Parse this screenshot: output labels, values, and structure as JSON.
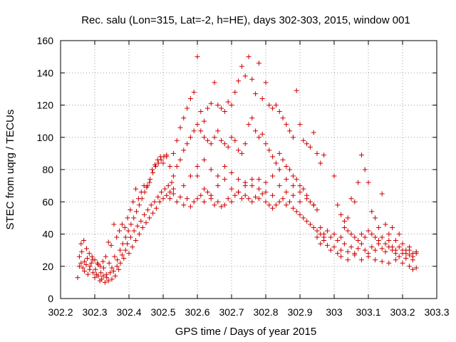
{
  "chart_data": {
    "type": "scatter",
    "title": "Rec. salu (Lon=315, Lat=-2, h=HE), days 302-303, 2015, window 001",
    "xlabel": "GPS time / Days of year 2015",
    "ylabel": "STEC from uqrg / TECUs",
    "xlim": [
      302.2,
      303.3
    ],
    "ylim": [
      0,
      160
    ],
    "xticks": [
      302.2,
      302.3,
      302.4,
      302.5,
      302.6,
      302.7,
      302.8,
      302.9,
      303.0,
      303.1,
      303.2,
      303.3
    ],
    "xtick_labels": [
      "302.2",
      "302.3",
      "302.4",
      "302.5",
      "302.6",
      "302.7",
      "302.8",
      "302.9",
      "303",
      "303.1",
      "303.2",
      "303.3"
    ],
    "yticks": [
      0,
      20,
      40,
      60,
      80,
      100,
      120,
      140,
      160
    ],
    "ytick_labels": [
      "0",
      "20",
      "40",
      "60",
      "80",
      "100",
      "120",
      "140",
      "160"
    ],
    "grid": true,
    "marker": "+",
    "color": "#cc0000",
    "points": [
      [
        302.25,
        13
      ],
      [
        302.255,
        20
      ],
      [
        302.26,
        22
      ],
      [
        302.265,
        19
      ],
      [
        302.27,
        17
      ],
      [
        302.275,
        21
      ],
      [
        302.28,
        15
      ],
      [
        302.285,
        18
      ],
      [
        302.29,
        22
      ],
      [
        302.295,
        16
      ],
      [
        302.3,
        13
      ],
      [
        302.305,
        15
      ],
      [
        302.31,
        14
      ],
      [
        302.315,
        11
      ],
      [
        302.32,
        12
      ],
      [
        302.325,
        14
      ],
      [
        302.33,
        10
      ],
      [
        302.335,
        13
      ],
      [
        302.34,
        11
      ],
      [
        302.345,
        16
      ],
      [
        302.35,
        12
      ],
      [
        302.355,
        17
      ],
      [
        302.36,
        14
      ],
      [
        302.365,
        20
      ],
      [
        302.37,
        18
      ],
      [
        302.375,
        22
      ],
      [
        302.38,
        27
      ],
      [
        302.385,
        25
      ],
      [
        302.39,
        30
      ],
      [
        302.395,
        34
      ],
      [
        302.4,
        28
      ],
      [
        302.405,
        38
      ],
      [
        302.41,
        32
      ],
      [
        302.415,
        42
      ],
      [
        302.42,
        36
      ],
      [
        302.425,
        45
      ],
      [
        302.43,
        40
      ],
      [
        302.435,
        48
      ],
      [
        302.44,
        44
      ],
      [
        302.445,
        52
      ],
      [
        302.45,
        47
      ],
      [
        302.455,
        55
      ],
      [
        302.46,
        50
      ],
      [
        302.465,
        58
      ],
      [
        302.47,
        53
      ],
      [
        302.475,
        60
      ],
      [
        302.48,
        56
      ],
      [
        302.485,
        63
      ],
      [
        302.49,
        60
      ],
      [
        302.495,
        66
      ],
      [
        302.5,
        62
      ],
      [
        302.505,
        68
      ],
      [
        302.51,
        64
      ],
      [
        302.515,
        70
      ],
      [
        302.52,
        66
      ],
      [
        302.525,
        72
      ],
      [
        302.53,
        68
      ],
      [
        302.255,
        26
      ],
      [
        302.262,
        29
      ],
      [
        302.27,
        23
      ],
      [
        302.278,
        25
      ],
      [
        302.286,
        20
      ],
      [
        302.294,
        24
      ],
      [
        302.302,
        18
      ],
      [
        302.31,
        21
      ],
      [
        302.318,
        16
      ],
      [
        302.326,
        19
      ],
      [
        302.334,
        15
      ],
      [
        302.342,
        22
      ],
      [
        302.35,
        19
      ],
      [
        302.358,
        26
      ],
      [
        302.366,
        24
      ],
      [
        302.374,
        30
      ],
      [
        302.382,
        34
      ],
      [
        302.39,
        38
      ],
      [
        302.398,
        42
      ],
      [
        302.406,
        46
      ],
      [
        302.414,
        50
      ],
      [
        302.422,
        54
      ],
      [
        302.43,
        58
      ],
      [
        302.438,
        62
      ],
      [
        302.446,
        66
      ],
      [
        302.454,
        70
      ],
      [
        302.462,
        74
      ],
      [
        302.47,
        78
      ],
      [
        302.478,
        82
      ],
      [
        302.486,
        84
      ],
      [
        302.494,
        86
      ],
      [
        302.502,
        88
      ],
      [
        302.51,
        89
      ],
      [
        302.26,
        34
      ],
      [
        302.268,
        36
      ],
      [
        302.276,
        31
      ],
      [
        302.284,
        28
      ],
      [
        302.292,
        26
      ],
      [
        302.3,
        24
      ],
      [
        302.308,
        22
      ],
      [
        302.316,
        20
      ],
      [
        302.324,
        23
      ],
      [
        302.332,
        26
      ],
      [
        302.34,
        35
      ],
      [
        302.348,
        33
      ],
      [
        302.356,
        46
      ],
      [
        302.364,
        38
      ],
      [
        302.372,
        42
      ],
      [
        302.38,
        46
      ],
      [
        302.388,
        44
      ],
      [
        302.396,
        50
      ],
      [
        302.404,
        55
      ],
      [
        302.412,
        60
      ],
      [
        302.42,
        68
      ],
      [
        302.428,
        62
      ],
      [
        302.436,
        66
      ],
      [
        302.444,
        70
      ],
      [
        302.452,
        69
      ],
      [
        302.46,
        72
      ],
      [
        302.468,
        80
      ],
      [
        302.476,
        83
      ],
      [
        302.484,
        86
      ],
      [
        302.492,
        88
      ],
      [
        302.5,
        84
      ],
      [
        302.51,
        88
      ],
      [
        302.52,
        82
      ],
      [
        302.53,
        90
      ],
      [
        302.54,
        98
      ],
      [
        302.55,
        106
      ],
      [
        302.56,
        112
      ],
      [
        302.57,
        118
      ],
      [
        302.58,
        124
      ],
      [
        302.59,
        128
      ],
      [
        302.6,
        150
      ],
      [
        302.61,
        116
      ],
      [
        302.62,
        110
      ],
      [
        302.63,
        118
      ],
      [
        302.64,
        121
      ],
      [
        302.65,
        134
      ],
      [
        302.66,
        120
      ],
      [
        302.67,
        118
      ],
      [
        302.68,
        116
      ],
      [
        302.69,
        122
      ],
      [
        302.7,
        120
      ],
      [
        302.71,
        128
      ],
      [
        302.72,
        135
      ],
      [
        302.73,
        144
      ],
      [
        302.74,
        138
      ],
      [
        302.75,
        150
      ],
      [
        302.76,
        136
      ],
      [
        302.77,
        127
      ],
      [
        302.78,
        146
      ],
      [
        302.79,
        124
      ],
      [
        302.8,
        134
      ],
      [
        302.81,
        120
      ],
      [
        302.82,
        118
      ],
      [
        302.83,
        120
      ],
      [
        302.84,
        116
      ],
      [
        302.85,
        112
      ],
      [
        302.86,
        108
      ],
      [
        302.87,
        104
      ],
      [
        302.88,
        100
      ],
      [
        302.89,
        129
      ],
      [
        302.9,
        108
      ],
      [
        302.91,
        98
      ],
      [
        302.92,
        96
      ],
      [
        302.93,
        94
      ],
      [
        302.94,
        103
      ],
      [
        302.95,
        90
      ],
      [
        302.96,
        84
      ],
      [
        302.97,
        89
      ],
      [
        302.53,
        76
      ],
      [
        302.54,
        82
      ],
      [
        302.55,
        86
      ],
      [
        302.56,
        92
      ],
      [
        302.57,
        96
      ],
      [
        302.58,
        100
      ],
      [
        302.59,
        104
      ],
      [
        302.6,
        108
      ],
      [
        302.61,
        104
      ],
      [
        302.62,
        100
      ],
      [
        302.63,
        98
      ],
      [
        302.64,
        96
      ],
      [
        302.65,
        100
      ],
      [
        302.66,
        104
      ],
      [
        302.67,
        98
      ],
      [
        302.68,
        96
      ],
      [
        302.69,
        94
      ],
      [
        302.7,
        100
      ],
      [
        302.71,
        98
      ],
      [
        302.72,
        92
      ],
      [
        302.73,
        90
      ],
      [
        302.74,
        96
      ],
      [
        302.75,
        108
      ],
      [
        302.76,
        112
      ],
      [
        302.77,
        104
      ],
      [
        302.78,
        100
      ],
      [
        302.79,
        102
      ],
      [
        302.8,
        96
      ],
      [
        302.81,
        92
      ],
      [
        302.82,
        88
      ],
      [
        302.83,
        84
      ],
      [
        302.84,
        90
      ],
      [
        302.85,
        86
      ],
      [
        302.86,
        82
      ],
      [
        302.87,
        80
      ],
      [
        302.88,
        76
      ],
      [
        302.89,
        74
      ],
      [
        302.9,
        70
      ],
      [
        302.91,
        68
      ],
      [
        302.92,
        64
      ],
      [
        302.93,
        60
      ],
      [
        302.94,
        58
      ],
      [
        302.95,
        55
      ],
      [
        302.52,
        62
      ],
      [
        302.53,
        65
      ],
      [
        302.54,
        60
      ],
      [
        302.55,
        63
      ],
      [
        302.56,
        58
      ],
      [
        302.57,
        62
      ],
      [
        302.58,
        57
      ],
      [
        302.59,
        60
      ],
      [
        302.6,
        62
      ],
      [
        302.61,
        64
      ],
      [
        302.62,
        60
      ],
      [
        302.63,
        66
      ],
      [
        302.64,
        62
      ],
      [
        302.65,
        58
      ],
      [
        302.66,
        60
      ],
      [
        302.67,
        57
      ],
      [
        302.68,
        58
      ],
      [
        302.69,
        62
      ],
      [
        302.7,
        60
      ],
      [
        302.71,
        64
      ],
      [
        302.72,
        66
      ],
      [
        302.73,
        62
      ],
      [
        302.74,
        64
      ],
      [
        302.75,
        62
      ],
      [
        302.76,
        60
      ],
      [
        302.77,
        63
      ],
      [
        302.78,
        62
      ],
      [
        302.79,
        65
      ],
      [
        302.8,
        60
      ],
      [
        302.81,
        58
      ],
      [
        302.82,
        56
      ],
      [
        302.83,
        58
      ],
      [
        302.84,
        60
      ],
      [
        302.85,
        62
      ],
      [
        302.86,
        58
      ],
      [
        302.87,
        60
      ],
      [
        302.88,
        56
      ],
      [
        302.89,
        54
      ],
      [
        302.9,
        52
      ],
      [
        302.91,
        50
      ],
      [
        302.92,
        48
      ],
      [
        302.93,
        46
      ],
      [
        302.94,
        44
      ],
      [
        302.95,
        42
      ],
      [
        302.96,
        40
      ],
      [
        302.97,
        38
      ],
      [
        302.56,
        70
      ],
      [
        302.58,
        76
      ],
      [
        302.6,
        82
      ],
      [
        302.62,
        86
      ],
      [
        302.64,
        80
      ],
      [
        302.66,
        76
      ],
      [
        302.68,
        82
      ],
      [
        302.7,
        78
      ],
      [
        302.72,
        74
      ],
      [
        302.74,
        72
      ],
      [
        302.76,
        70
      ],
      [
        302.78,
        74
      ],
      [
        302.8,
        72
      ],
      [
        302.82,
        76
      ],
      [
        302.84,
        80
      ],
      [
        302.86,
        74
      ],
      [
        302.88,
        70
      ],
      [
        302.9,
        66
      ],
      [
        302.92,
        62
      ],
      [
        302.94,
        58
      ],
      [
        302.6,
        76
      ],
      [
        302.62,
        68
      ],
      [
        302.64,
        64
      ],
      [
        302.66,
        70
      ],
      [
        302.68,
        74
      ],
      [
        302.7,
        68
      ],
      [
        302.72,
        66
      ],
      [
        302.74,
        70
      ],
      [
        302.76,
        74
      ],
      [
        302.78,
        68
      ],
      [
        302.8,
        66
      ],
      [
        302.82,
        64
      ],
      [
        302.84,
        70
      ],
      [
        302.86,
        66
      ],
      [
        302.88,
        64
      ],
      [
        302.9,
        60
      ],
      [
        302.95,
        38
      ],
      [
        302.96,
        34
      ],
      [
        302.97,
        36
      ],
      [
        302.98,
        33
      ],
      [
        302.99,
        30
      ],
      [
        303.0,
        32
      ],
      [
        303.01,
        28
      ],
      [
        303.02,
        30
      ],
      [
        303.03,
        34
      ],
      [
        303.04,
        29
      ],
      [
        303.05,
        32
      ],
      [
        303.06,
        28
      ],
      [
        303.07,
        31
      ],
      [
        303.08,
        34
      ],
      [
        303.09,
        30
      ],
      [
        303.1,
        28
      ],
      [
        303.11,
        32
      ],
      [
        303.12,
        30
      ],
      [
        303.13,
        34
      ],
      [
        303.14,
        31
      ],
      [
        303.15,
        29
      ],
      [
        303.16,
        32
      ],
      [
        303.17,
        30
      ],
      [
        303.18,
        28
      ],
      [
        303.19,
        26
      ],
      [
        303.2,
        28
      ],
      [
        303.21,
        25
      ],
      [
        303.22,
        27
      ],
      [
        303.23,
        24
      ],
      [
        303.24,
        28
      ],
      [
        302.96,
        44
      ],
      [
        302.97,
        40
      ],
      [
        302.98,
        42
      ],
      [
        302.99,
        38
      ],
      [
        303.0,
        40
      ],
      [
        303.01,
        36
      ],
      [
        303.02,
        38
      ],
      [
        303.03,
        44
      ],
      [
        303.04,
        42
      ],
      [
        303.05,
        40
      ],
      [
        303.06,
        38
      ],
      [
        303.07,
        36
      ],
      [
        303.08,
        40
      ],
      [
        303.09,
        38
      ],
      [
        303.1,
        42
      ],
      [
        303.11,
        40
      ],
      [
        303.12,
        38
      ],
      [
        303.13,
        36
      ],
      [
        303.14,
        38
      ],
      [
        303.15,
        34
      ],
      [
        303.16,
        36
      ],
      [
        303.17,
        32
      ],
      [
        303.18,
        30
      ],
      [
        303.19,
        32
      ],
      [
        303.2,
        30
      ],
      [
        303.21,
        28
      ],
      [
        303.22,
        30
      ],
      [
        303.23,
        26
      ],
      [
        303.24,
        29
      ],
      [
        303.0,
        76
      ],
      [
        303.01,
        58
      ],
      [
        303.02,
        52
      ],
      [
        303.03,
        48
      ],
      [
        303.04,
        50
      ],
      [
        303.05,
        62
      ],
      [
        303.06,
        60
      ],
      [
        303.07,
        72
      ],
      [
        303.08,
        89
      ],
      [
        303.09,
        80
      ],
      [
        303.1,
        72
      ],
      [
        303.11,
        54
      ],
      [
        303.12,
        50
      ],
      [
        303.13,
        44
      ],
      [
        303.14,
        65
      ],
      [
        303.15,
        46
      ],
      [
        303.16,
        40
      ],
      [
        303.17,
        44
      ],
      [
        303.18,
        36
      ],
      [
        303.19,
        40
      ],
      [
        303.2,
        34
      ],
      [
        303.21,
        30
      ],
      [
        303.22,
        32
      ],
      [
        303.23,
        28
      ],
      [
        303.02,
        26
      ],
      [
        303.04,
        24
      ],
      [
        303.06,
        27
      ],
      [
        303.08,
        24
      ],
      [
        303.1,
        26
      ],
      [
        303.12,
        24
      ],
      [
        303.14,
        23
      ],
      [
        303.16,
        22
      ],
      [
        303.18,
        24
      ],
      [
        303.2,
        22
      ],
      [
        303.22,
        20
      ],
      [
        303.23,
        18
      ],
      [
        303.24,
        19
      ]
    ]
  }
}
